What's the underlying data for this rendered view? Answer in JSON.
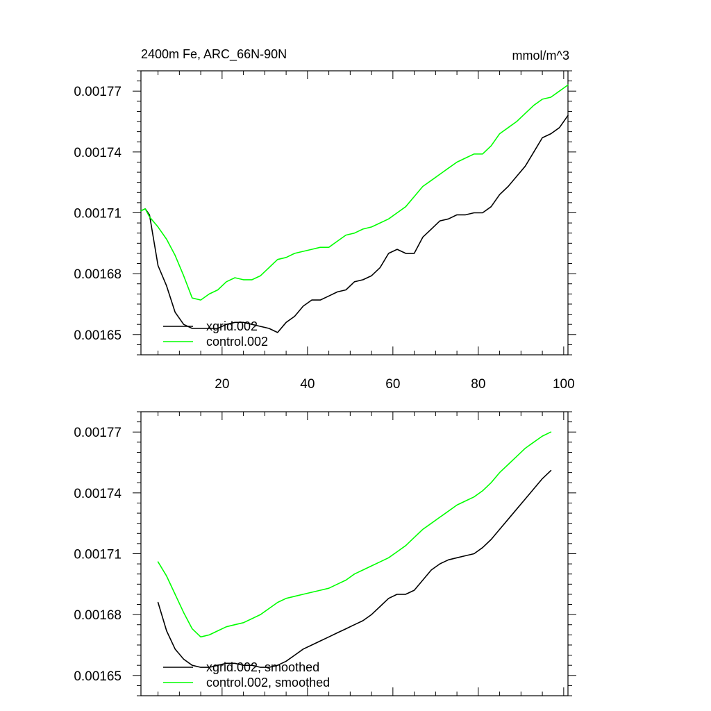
{
  "chart_data": [
    {
      "type": "line",
      "title_left": "2400m Fe, ARC_66N-90N",
      "title_right": "mmol/m^3",
      "xlim": [
        1,
        101
      ],
      "ylim": [
        0.00164,
        0.00178
      ],
      "xticks": [
        20,
        40,
        60,
        80,
        100
      ],
      "xtick_labels": [
        "20",
        "40",
        "60",
        "80",
        "100"
      ],
      "yticks": [
        0.00165,
        0.00168,
        0.00171,
        0.00174,
        0.00177
      ],
      "ytick_labels": [
        "0.00165",
        "0.00168",
        "0.00171",
        "0.00174",
        "0.00177"
      ],
      "legend": {
        "position": "bottom-left"
      },
      "series": [
        {
          "name": "xgrid.002",
          "color": "#000000",
          "x": [
            1,
            2,
            3,
            5,
            7,
            9,
            11,
            13,
            15,
            17,
            19,
            21,
            23,
            25,
            27,
            29,
            31,
            33,
            35,
            37,
            39,
            41,
            43,
            45,
            47,
            49,
            51,
            53,
            55,
            57,
            59,
            61,
            63,
            65,
            67,
            69,
            71,
            73,
            75,
            77,
            79,
            81,
            83,
            85,
            87,
            89,
            91,
            93,
            95,
            97,
            99,
            101
          ],
          "values": [
            0.001711,
            0.001712,
            0.001709,
            0.001684,
            0.001674,
            0.001661,
            0.001655,
            0.001653,
            0.001653,
            0.001653,
            0.001653,
            0.001655,
            0.001656,
            0.001656,
            0.001655,
            0.001654,
            0.001653,
            0.001651,
            0.001656,
            0.001659,
            0.001664,
            0.001667,
            0.001667,
            0.001669,
            0.001671,
            0.001672,
            0.001676,
            0.001677,
            0.001679,
            0.001683,
            0.00169,
            0.001692,
            0.00169,
            0.00169,
            0.001698,
            0.001702,
            0.001706,
            0.001707,
            0.001709,
            0.001709,
            0.00171,
            0.00171,
            0.001713,
            0.001719,
            0.001723,
            0.001728,
            0.001733,
            0.00174,
            0.001747,
            0.001749,
            0.001752,
            0.001758
          ]
        },
        {
          "name": "control.002",
          "color": "#00ff00",
          "x": [
            1,
            2,
            3,
            5,
            7,
            9,
            11,
            13,
            15,
            17,
            19,
            21,
            23,
            25,
            27,
            29,
            31,
            33,
            35,
            37,
            39,
            41,
            43,
            45,
            47,
            49,
            51,
            53,
            55,
            57,
            59,
            61,
            63,
            65,
            67,
            69,
            71,
            73,
            75,
            77,
            79,
            81,
            83,
            85,
            87,
            89,
            91,
            93,
            95,
            97,
            99,
            101
          ],
          "values": [
            0.001711,
            0.001712,
            0.001708,
            0.001703,
            0.001697,
            0.001689,
            0.001679,
            0.001668,
            0.001667,
            0.00167,
            0.001672,
            0.001676,
            0.001678,
            0.001677,
            0.001677,
            0.001679,
            0.001683,
            0.001687,
            0.001688,
            0.00169,
            0.001691,
            0.001692,
            0.001693,
            0.001693,
            0.001696,
            0.001699,
            0.0017,
            0.001702,
            0.001703,
            0.001705,
            0.001707,
            0.00171,
            0.001713,
            0.001718,
            0.001723,
            0.001726,
            0.001729,
            0.001732,
            0.001735,
            0.001737,
            0.001739,
            0.001739,
            0.001743,
            0.001749,
            0.001752,
            0.001755,
            0.001759,
            0.001763,
            0.001766,
            0.001767,
            0.00177,
            0.001773
          ]
        }
      ]
    },
    {
      "type": "line",
      "xlim": [
        1,
        101
      ],
      "ylim": [
        0.00164,
        0.00178
      ],
      "xticks": [
        20,
        40,
        60,
        80,
        100
      ],
      "yticks": [
        0.00165,
        0.00168,
        0.00171,
        0.00174,
        0.00177
      ],
      "ytick_labels": [
        "0.00165",
        "0.00168",
        "0.00171",
        "0.00174",
        "0.00177"
      ],
      "legend": {
        "position": "bottom-left"
      },
      "series": [
        {
          "name": "xgrid.002, smoothed",
          "color": "#000000",
          "x": [
            5,
            7,
            9,
            11,
            13,
            15,
            17,
            19,
            21,
            23,
            25,
            27,
            29,
            31,
            33,
            35,
            37,
            39,
            41,
            43,
            45,
            47,
            49,
            51,
            53,
            55,
            57,
            59,
            61,
            63,
            65,
            67,
            69,
            71,
            73,
            75,
            77,
            79,
            81,
            83,
            85,
            87,
            89,
            91,
            93,
            95,
            97
          ],
          "values": [
            0.001686,
            0.001672,
            0.001663,
            0.001658,
            0.001655,
            0.001654,
            0.001654,
            0.001655,
            0.001656,
            0.001656,
            0.001655,
            0.001655,
            0.001654,
            0.001654,
            0.001655,
            0.001657,
            0.00166,
            0.001663,
            0.001665,
            0.001667,
            0.001669,
            0.001671,
            0.001673,
            0.001675,
            0.001677,
            0.00168,
            0.001684,
            0.001688,
            0.00169,
            0.00169,
            0.001692,
            0.001697,
            0.001702,
            0.001705,
            0.001707,
            0.001708,
            0.001709,
            0.00171,
            0.001713,
            0.001717,
            0.001722,
            0.001727,
            0.001732,
            0.001737,
            0.001742,
            0.001747,
            0.001751
          ]
        },
        {
          "name": "control.002, smoothed",
          "color": "#00ff00",
          "x": [
            5,
            7,
            9,
            11,
            13,
            15,
            17,
            19,
            21,
            23,
            25,
            27,
            29,
            31,
            33,
            35,
            37,
            39,
            41,
            43,
            45,
            47,
            49,
            51,
            53,
            55,
            57,
            59,
            61,
            63,
            65,
            67,
            69,
            71,
            73,
            75,
            77,
            79,
            81,
            83,
            85,
            87,
            89,
            91,
            93,
            95,
            97
          ],
          "values": [
            0.001706,
            0.001699,
            0.00169,
            0.001681,
            0.001673,
            0.001669,
            0.00167,
            0.001672,
            0.001674,
            0.001675,
            0.001676,
            0.001678,
            0.00168,
            0.001683,
            0.001686,
            0.001688,
            0.001689,
            0.00169,
            0.001691,
            0.001692,
            0.001693,
            0.001695,
            0.001697,
            0.0017,
            0.001702,
            0.001704,
            0.001706,
            0.001708,
            0.001711,
            0.001714,
            0.001718,
            0.001722,
            0.001725,
            0.001728,
            0.001731,
            0.001734,
            0.001736,
            0.001738,
            0.001741,
            0.001745,
            0.00175,
            0.001754,
            0.001758,
            0.001762,
            0.001765,
            0.001768,
            0.00177
          ]
        }
      ]
    }
  ]
}
